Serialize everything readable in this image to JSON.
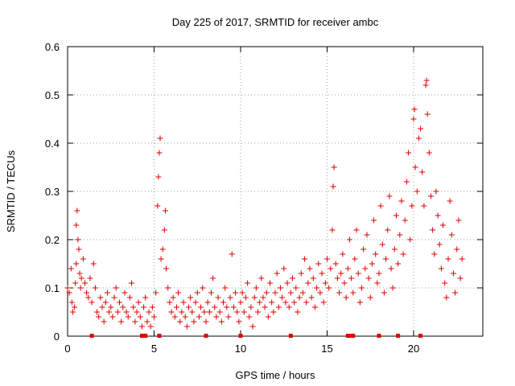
{
  "chart_data": {
    "type": "scatter",
    "title": "Day 225 of 2017, SRMTID for receiver ambc",
    "xlabel": "GPS time / hours",
    "ylabel": "SRMTID / TECUs",
    "xlim": [
      0,
      24
    ],
    "ylim": [
      0,
      0.6
    ],
    "x_ticks": [
      0,
      5,
      10,
      15,
      20
    ],
    "y_ticks": [
      0,
      0.1,
      0.2,
      0.3,
      0.4,
      0.5,
      0.6
    ],
    "x_tick_labels": [
      "0",
      "5",
      "10",
      "15",
      "20"
    ],
    "y_tick_labels": [
      "0",
      "0.1",
      "0.2",
      "0.3",
      "0.4",
      "0.5",
      "0.6"
    ],
    "grid": true,
    "legend": "none",
    "series": [
      {
        "marker": "plus",
        "color": "#e00000",
        "points": [
          [
            0.0,
            0.1
          ],
          [
            0.1,
            0.09
          ],
          [
            0.2,
            0.14
          ],
          [
            0.25,
            0.07
          ],
          [
            0.3,
            0.05
          ],
          [
            0.4,
            0.06
          ],
          [
            0.45,
            0.11
          ],
          [
            0.5,
            0.15
          ],
          [
            0.5,
            0.23
          ],
          [
            0.55,
            0.26
          ],
          [
            0.6,
            0.2
          ],
          [
            0.65,
            0.18
          ],
          [
            0.7,
            0.13
          ],
          [
            0.75,
            0.1
          ],
          [
            0.8,
            0.12
          ],
          [
            0.9,
            0.16
          ],
          [
            1.0,
            0.11
          ],
          [
            1.1,
            0.09
          ],
          [
            1.2,
            0.08
          ],
          [
            1.3,
            0.12
          ],
          [
            1.4,
            0.07
          ],
          [
            1.5,
            0.15
          ],
          [
            1.6,
            0.1
          ],
          [
            1.7,
            0.05
          ],
          [
            1.8,
            0.04
          ],
          [
            1.9,
            0.08
          ],
          [
            2.0,
            0.06
          ],
          [
            2.1,
            0.03
          ],
          [
            2.2,
            0.07
          ],
          [
            2.3,
            0.09
          ],
          [
            2.4,
            0.05
          ],
          [
            2.5,
            0.06
          ],
          [
            2.6,
            0.04
          ],
          [
            2.7,
            0.08
          ],
          [
            2.8,
            0.1
          ],
          [
            2.9,
            0.05
          ],
          [
            3.0,
            0.07
          ],
          [
            3.1,
            0.03
          ],
          [
            3.2,
            0.06
          ],
          [
            3.3,
            0.09
          ],
          [
            3.4,
            0.05
          ],
          [
            3.5,
            0.04
          ],
          [
            3.6,
            0.08
          ],
          [
            3.7,
            0.11
          ],
          [
            3.8,
            0.06
          ],
          [
            3.9,
            0.03
          ],
          [
            4.0,
            0.05
          ],
          [
            4.1,
            0.07
          ],
          [
            4.2,
            0.04
          ],
          [
            4.3,
            0.02
          ],
          [
            4.4,
            0.06
          ],
          [
            4.5,
            0.08
          ],
          [
            4.6,
            0.03
          ],
          [
            4.7,
            0.05
          ],
          [
            4.8,
            0.02
          ],
          [
            4.9,
            0.06
          ],
          [
            5.0,
            0.04
          ],
          [
            5.1,
            0.09
          ],
          [
            5.2,
            0.27
          ],
          [
            5.25,
            0.33
          ],
          [
            5.3,
            0.38
          ],
          [
            5.35,
            0.41
          ],
          [
            5.4,
            0.16
          ],
          [
            5.5,
            0.18
          ],
          [
            5.6,
            0.22
          ],
          [
            5.65,
            0.26
          ],
          [
            5.7,
            0.14
          ],
          [
            5.8,
            0.1
          ],
          [
            5.9,
            0.07
          ],
          [
            6.0,
            0.05
          ],
          [
            6.1,
            0.08
          ],
          [
            6.2,
            0.04
          ],
          [
            6.3,
            0.06
          ],
          [
            6.4,
            0.09
          ],
          [
            6.5,
            0.03
          ],
          [
            6.6,
            0.05
          ],
          [
            6.7,
            0.07
          ],
          [
            6.8,
            0.04
          ],
          [
            6.9,
            0.02
          ],
          [
            7.0,
            0.06
          ],
          [
            7.1,
            0.08
          ],
          [
            7.2,
            0.05
          ],
          [
            7.3,
            0.03
          ],
          [
            7.4,
            0.07
          ],
          [
            7.5,
            0.09
          ],
          [
            7.6,
            0.04
          ],
          [
            7.7,
            0.06
          ],
          [
            7.8,
            0.1
          ],
          [
            7.9,
            0.05
          ],
          [
            8.0,
            0.03
          ],
          [
            8.1,
            0.07
          ],
          [
            8.2,
            0.05
          ],
          [
            8.3,
            0.09
          ],
          [
            8.4,
            0.12
          ],
          [
            8.5,
            0.06
          ],
          [
            8.6,
            0.04
          ],
          [
            8.7,
            0.08
          ],
          [
            8.8,
            0.05
          ],
          [
            8.9,
            0.03
          ],
          [
            9.0,
            0.07
          ],
          [
            9.1,
            0.1
          ],
          [
            9.2,
            0.06
          ],
          [
            9.3,
            0.04
          ],
          [
            9.4,
            0.08
          ],
          [
            9.5,
            0.17
          ],
          [
            9.6,
            0.06
          ],
          [
            9.7,
            0.09
          ],
          [
            9.8,
            0.05
          ],
          [
            9.9,
            0.03
          ],
          [
            10.0,
            0.07
          ],
          [
            10.1,
            0.09
          ],
          [
            10.2,
            0.05
          ],
          [
            10.3,
            0.08
          ],
          [
            10.4,
            0.11
          ],
          [
            10.5,
            0.04
          ],
          [
            10.6,
            0.06
          ],
          [
            10.7,
            0.02
          ],
          [
            10.8,
            0.08
          ],
          [
            10.9,
            0.1
          ],
          [
            11.0,
            0.05
          ],
          [
            11.1,
            0.07
          ],
          [
            11.2,
            0.12
          ],
          [
            11.3,
            0.08
          ],
          [
            11.4,
            0.06
          ],
          [
            11.5,
            0.09
          ],
          [
            11.6,
            0.04
          ],
          [
            11.7,
            0.11
          ],
          [
            11.8,
            0.07
          ],
          [
            11.9,
            0.05
          ],
          [
            12.0,
            0.09
          ],
          [
            12.1,
            0.13
          ],
          [
            12.2,
            0.06
          ],
          [
            12.3,
            0.1
          ],
          [
            12.4,
            0.08
          ],
          [
            12.5,
            0.14
          ],
          [
            12.6,
            0.07
          ],
          [
            12.7,
            0.11
          ],
          [
            12.8,
            0.06
          ],
          [
            12.9,
            0.09
          ],
          [
            13.0,
            0.12
          ],
          [
            13.1,
            0.07
          ],
          [
            13.2,
            0.1
          ],
          [
            13.3,
            0.05
          ],
          [
            13.4,
            0.08
          ],
          [
            13.5,
            0.13
          ],
          [
            13.6,
            0.09
          ],
          [
            13.7,
            0.16
          ],
          [
            13.8,
            0.07
          ],
          [
            13.9,
            0.11
          ],
          [
            14.0,
            0.14
          ],
          [
            14.1,
            0.08
          ],
          [
            14.2,
            0.12
          ],
          [
            14.3,
            0.06
          ],
          [
            14.4,
            0.1
          ],
          [
            14.5,
            0.15
          ],
          [
            14.6,
            0.09
          ],
          [
            14.7,
            0.13
          ],
          [
            14.8,
            0.07
          ],
          [
            14.9,
            0.11
          ],
          [
            15.0,
            0.16
          ],
          [
            15.1,
            0.1
          ],
          [
            15.2,
            0.14
          ],
          [
            15.3,
            0.22
          ],
          [
            15.35,
            0.31
          ],
          [
            15.4,
            0.35
          ],
          [
            15.5,
            0.15
          ],
          [
            15.6,
            0.12
          ],
          [
            15.7,
            0.09
          ],
          [
            15.8,
            0.13
          ],
          [
            15.9,
            0.17
          ],
          [
            16.0,
            0.11
          ],
          [
            16.1,
            0.08
          ],
          [
            16.2,
            0.14
          ],
          [
            16.3,
            0.2
          ],
          [
            16.4,
            0.12
          ],
          [
            16.5,
            0.09
          ],
          [
            16.6,
            0.16
          ],
          [
            16.7,
            0.22
          ],
          [
            16.8,
            0.13
          ],
          [
            16.9,
            0.07
          ],
          [
            17.0,
            0.1
          ],
          [
            17.1,
            0.18
          ],
          [
            17.2,
            0.14
          ],
          [
            17.3,
            0.21
          ],
          [
            17.4,
            0.12
          ],
          [
            17.5,
            0.08
          ],
          [
            17.6,
            0.15
          ],
          [
            17.7,
            0.24
          ],
          [
            17.8,
            0.17
          ],
          [
            17.9,
            0.11
          ],
          [
            18.0,
            0.13
          ],
          [
            18.1,
            0.27
          ],
          [
            18.2,
            0.19
          ],
          [
            18.3,
            0.09
          ],
          [
            18.4,
            0.16
          ],
          [
            18.5,
            0.22
          ],
          [
            18.6,
            0.29
          ],
          [
            18.7,
            0.14
          ],
          [
            18.8,
            0.1
          ],
          [
            18.9,
            0.18
          ],
          [
            19.0,
            0.25
          ],
          [
            19.1,
            0.15
          ],
          [
            19.2,
            0.21
          ],
          [
            19.3,
            0.28
          ],
          [
            19.4,
            0.17
          ],
          [
            19.5,
            0.24
          ],
          [
            19.6,
            0.32
          ],
          [
            19.7,
            0.38
          ],
          [
            19.8,
            0.2
          ],
          [
            19.9,
            0.27
          ],
          [
            20.0,
            0.45
          ],
          [
            20.05,
            0.47
          ],
          [
            20.1,
            0.35
          ],
          [
            20.2,
            0.3
          ],
          [
            20.3,
            0.41
          ],
          [
            20.4,
            0.43
          ],
          [
            20.5,
            0.34
          ],
          [
            20.6,
            0.27
          ],
          [
            20.7,
            0.52
          ],
          [
            20.75,
            0.53
          ],
          [
            20.8,
            0.46
          ],
          [
            20.9,
            0.38
          ],
          [
            21.0,
            0.29
          ],
          [
            21.1,
            0.22
          ],
          [
            21.2,
            0.17
          ],
          [
            21.3,
            0.3
          ],
          [
            21.4,
            0.25
          ],
          [
            21.5,
            0.19
          ],
          [
            21.6,
            0.14
          ],
          [
            21.7,
            0.23
          ],
          [
            21.8,
            0.11
          ],
          [
            21.9,
            0.08
          ],
          [
            22.0,
            0.16
          ],
          [
            22.1,
            0.28
          ],
          [
            22.2,
            0.21
          ],
          [
            22.3,
            0.13
          ],
          [
            22.4,
            0.09
          ],
          [
            22.5,
            0.18
          ],
          [
            22.6,
            0.24
          ],
          [
            22.7,
            0.12
          ],
          [
            22.8,
            0.16
          ]
        ]
      }
    ],
    "axis_markers": {
      "color": "#e00000",
      "x": [
        1.4,
        4.3,
        4.5,
        5.3,
        8.0,
        10.0,
        12.9,
        16.2,
        16.4,
        16.5,
        18.0,
        19.1,
        20.4
      ]
    }
  }
}
